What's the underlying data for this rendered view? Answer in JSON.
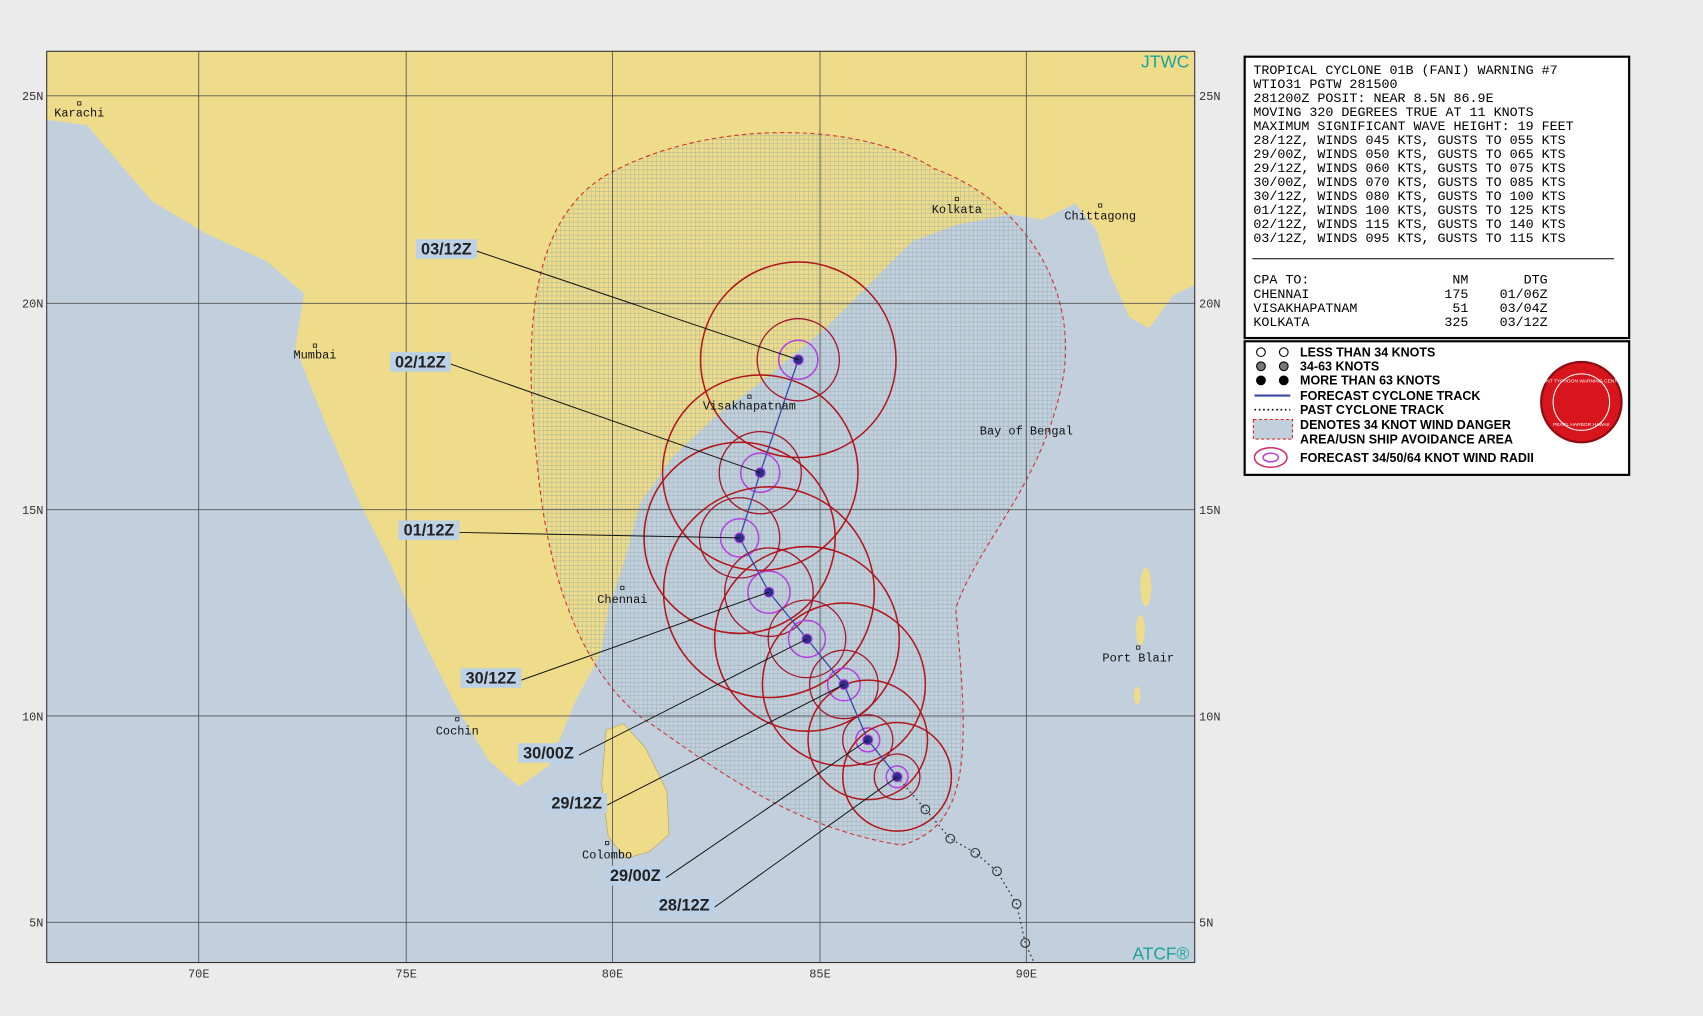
{
  "badges": {
    "top": "JTWC",
    "bottom": "ATCF®"
  },
  "map": {
    "lat_labels": [
      "25N",
      "20N",
      "15N",
      "10N",
      "5N"
    ],
    "lon_labels": [
      "70E",
      "75E",
      "80E",
      "85E",
      "90E"
    ],
    "places": [
      "Karachi",
      "Mumbai",
      "Visakhapatnam",
      "Chennai",
      "Cochin",
      "Colombo",
      "Kolkata",
      "Chittagong",
      "Bay of Bengal",
      "Port Blair"
    ],
    "forecast_labels": [
      "03/12Z",
      "02/12Z",
      "01/12Z",
      "30/12Z",
      "30/00Z",
      "29/12Z",
      "29/00Z",
      "28/12Z"
    ]
  },
  "warning": {
    "lines": [
      "TROPICAL CYCLONE 01B (FANI) WARNING #7",
      "WTIO31 PGTW 281500",
      "281200Z POSIT: NEAR 8.5N 86.9E",
      "MOVING 320 DEGREES TRUE AT 11 KNOTS",
      "MAXIMUM SIGNIFICANT WAVE HEIGHT: 19 FEET",
      "28/12Z, WINDS 045 KTS, GUSTS TO 055 KTS",
      "29/00Z, WINDS 050 KTS, GUSTS TO 065 KTS",
      "29/12Z, WINDS 060 KTS, GUSTS TO 075 KTS",
      "30/00Z, WINDS 070 KTS, GUSTS TO 085 KTS",
      "30/12Z, WINDS 080 KTS, GUSTS TO 100 KTS",
      "01/12Z, WINDS 100 KTS, GUSTS TO 125 KTS",
      "02/12Z, WINDS 115 KTS, GUSTS TO 140 KTS",
      "03/12Z, WINDS 095 KTS, GUSTS TO 115 KTS"
    ],
    "cpa_header": [
      "CPA TO:",
      "NM",
      "DTG"
    ],
    "cpa_rows": [
      [
        "CHENNAI",
        "175",
        "01/06Z"
      ],
      [
        "VISAKHAPATNAM",
        "51",
        "03/04Z"
      ],
      [
        "KOLKATA",
        "325",
        "03/12Z"
      ]
    ]
  },
  "legend": {
    "items": [
      "LESS THAN 34 KNOTS",
      "34-63 KNOTS",
      "MORE THAN 63 KNOTS",
      "FORECAST CYCLONE TRACK",
      "PAST CYCLONE TRACK",
      "DENOTES 34 KNOT WIND DANGER",
      "AREA/USN SHIP AVOIDANCE AREA",
      "FORECAST 34/50/64 KNOT WIND RADII"
    ],
    "logo_top": "JOINT TYPHOON WARNING CENTER",
    "logo_bottom": "PEARL HARBOR HAWAII"
  }
}
